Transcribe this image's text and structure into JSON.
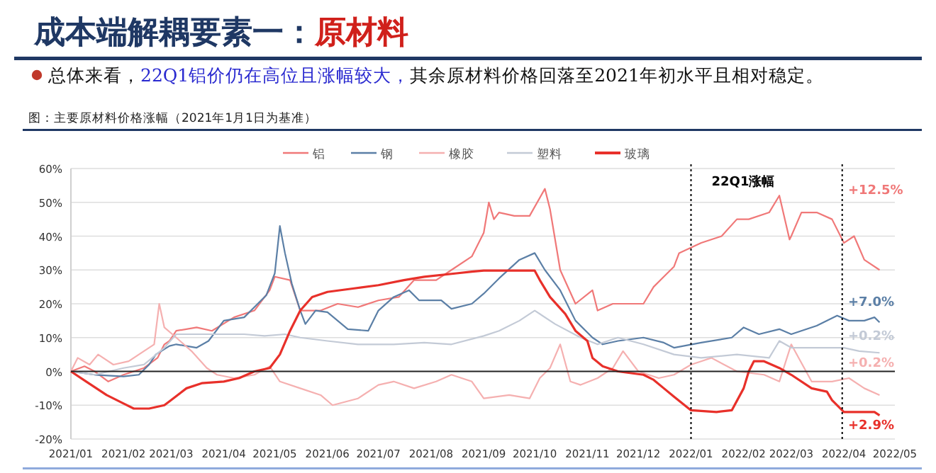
{
  "chart_data": {
    "type": "line",
    "title": "成本端解耦要素一：原材料",
    "subtitle": "总体来看，22Q1铝价仍在高位且涨幅较大，其余原材料价格回落至2021年初水平且相对稳定。",
    "annotations": [
      "图：主要原材料价格涨幅（2021年1月1日为基准）",
      "22Q1涨幅",
      "+12.5%",
      "+7.0%",
      "+0.2%",
      "+0.2%",
      "+2.9%"
    ],
    "legend": "top",
    "grid": "y",
    "xlim": [
      "2021-01-01",
      "2022-05-01"
    ],
    "xticks": [
      {
        "value": "2021-01",
        "label": "2021/01"
      },
      {
        "value": "2021-02",
        "label": "2021/02"
      },
      {
        "value": "2021-03",
        "label": "2021/03"
      },
      {
        "value": "2021-04",
        "label": "2021/04"
      },
      {
        "value": "2021-05",
        "label": "2021/05"
      },
      {
        "value": "2021-06",
        "label": "2021/06"
      },
      {
        "value": "2021-07",
        "label": "2021/07"
      },
      {
        "value": "2021-08",
        "label": "2021/08"
      },
      {
        "value": "2021-09",
        "label": "2021/09"
      },
      {
        "value": "2021-10",
        "label": "2021/10"
      },
      {
        "value": "2021-11",
        "label": "2021/11"
      },
      {
        "value": "2021-12",
        "label": "2021/12"
      },
      {
        "value": "2022-01",
        "label": "2022/01"
      },
      {
        "value": "2022-02",
        "label": "2022/02"
      },
      {
        "value": "2022-03",
        "label": "2022/03"
      },
      {
        "value": "2022-04",
        "label": "2022/04"
      },
      {
        "value": "2022-05",
        "label": "2022/05"
      }
    ],
    "ylim": [
      -20,
      60
    ],
    "yticks": [
      {
        "value": -20,
        "label": "-20%"
      },
      {
        "value": -10,
        "label": "-10%"
      },
      {
        "value": 0,
        "label": "0%"
      },
      {
        "value": 10,
        "label": "10%"
      },
      {
        "value": 20,
        "label": "20%"
      },
      {
        "value": 30,
        "label": "30%"
      },
      {
        "value": 40,
        "label": "40%"
      },
      {
        "value": 50,
        "label": "50%"
      },
      {
        "value": 60,
        "label": "60%"
      }
    ],
    "ref_lines": [
      {
        "axis": "x",
        "value": "2022-01-01",
        "line_style": "dotted",
        "color": "#000000"
      },
      {
        "axis": "x",
        "value": "2022-03-31",
        "line_style": "dotted",
        "color": "#000000"
      }
    ],
    "series": [
      {
        "name": "铝",
        "color": "#f07878",
        "x": [
          "2021-01-01",
          "2021-01-09",
          "2021-01-15",
          "2021-01-23",
          "2021-02-01",
          "2021-02-13",
          "2021-02-21",
          "2021-02-25",
          "2021-02-28",
          "2021-03-04",
          "2021-03-16",
          "2021-03-25",
          "2021-04-07",
          "2021-04-19",
          "2021-04-28",
          "2021-05-01",
          "2021-05-10",
          "2021-05-16",
          "2021-05-28",
          "2021-06-07",
          "2021-06-19",
          "2021-07-01",
          "2021-07-13",
          "2021-07-22",
          "2021-08-04",
          "2021-08-13",
          "2021-08-25",
          "2021-09-01",
          "2021-09-04",
          "2021-09-07",
          "2021-09-10",
          "2021-09-19",
          "2021-09-28",
          "2021-10-07",
          "2021-10-10",
          "2021-10-16",
          "2021-10-25",
          "2021-11-04",
          "2021-11-07",
          "2021-11-16",
          "2021-11-25",
          "2021-12-04",
          "2021-12-10",
          "2021-12-16",
          "2021-12-22",
          "2021-12-25",
          "2022-01-07",
          "2022-01-19",
          "2022-01-28",
          "2022-02-04",
          "2022-02-16",
          "2022-02-22",
          "2022-02-28",
          "2022-03-01",
          "2022-03-07",
          "2022-03-16",
          "2022-03-25",
          "2022-04-01",
          "2022-04-07",
          "2022-04-13",
          "2022-04-22"
        ],
        "values": [
          0,
          1.5,
          0,
          -3,
          -1,
          1,
          4,
          8,
          9,
          12,
          13,
          12,
          16,
          18,
          24,
          28,
          27,
          18,
          18,
          20,
          19,
          21,
          22,
          27,
          27,
          30,
          34,
          41,
          50,
          45,
          47,
          46,
          46,
          54,
          48,
          30,
          20,
          24,
          18,
          20,
          20,
          20,
          25,
          28,
          31,
          35,
          38,
          40,
          45,
          45,
          47,
          52,
          39,
          40,
          47,
          47,
          45,
          38,
          40,
          33,
          30
        ]
      },
      {
        "name": "钢",
        "color": "#5b7fa6",
        "x": [
          "2021-01-01",
          "2021-01-15",
          "2021-02-01",
          "2021-02-10",
          "2021-02-16",
          "2021-02-20",
          "2021-02-28",
          "2021-03-04",
          "2021-03-16",
          "2021-03-23",
          "2021-04-01",
          "2021-04-13",
          "2021-04-19",
          "2021-04-26",
          "2021-05-01",
          "2021-05-04",
          "2021-05-07",
          "2021-05-11",
          "2021-05-16",
          "2021-05-19",
          "2021-05-25",
          "2021-06-01",
          "2021-06-13",
          "2021-06-25",
          "2021-07-01",
          "2021-07-10",
          "2021-07-19",
          "2021-07-25",
          "2021-08-07",
          "2021-08-13",
          "2021-08-25",
          "2021-09-01",
          "2021-09-10",
          "2021-09-22",
          "2021-10-01",
          "2021-10-07",
          "2021-10-16",
          "2021-10-25",
          "2021-11-04",
          "2021-11-10",
          "2021-11-19",
          "2021-12-04",
          "2021-12-16",
          "2021-12-22",
          "2022-01-07",
          "2022-01-25",
          "2022-02-01",
          "2022-02-10",
          "2022-02-22",
          "2022-03-01",
          "2022-03-16",
          "2022-03-28",
          "2022-04-04",
          "2022-04-13",
          "2022-04-19",
          "2022-04-22"
        ],
        "values": [
          0,
          -1,
          -1.5,
          -1,
          2,
          5,
          7.5,
          8,
          7,
          9,
          15,
          16,
          19,
          22.5,
          29,
          43,
          35,
          26,
          18,
          14,
          18,
          17.5,
          12.5,
          12,
          18,
          22,
          24,
          21,
          21,
          18.5,
          20,
          23,
          27.5,
          33,
          35,
          30,
          24,
          15,
          10,
          8,
          9,
          10,
          8.5,
          7,
          8.5,
          10,
          13,
          11,
          12.5,
          11,
          13.5,
          16.5,
          15,
          15,
          16,
          14.5
        ]
      },
      {
        "name": "橡胶",
        "color": "#f5b0b0",
        "x": [
          "2021-01-01",
          "2021-01-05",
          "2021-01-12",
          "2021-01-17",
          "2021-01-26",
          "2021-02-04",
          "2021-02-13",
          "2021-02-19",
          "2021-02-22",
          "2021-02-25",
          "2021-03-04",
          "2021-03-13",
          "2021-03-22",
          "2021-03-28",
          "2021-04-07",
          "2021-04-19",
          "2021-04-28",
          "2021-05-04",
          "2021-05-16",
          "2021-05-28",
          "2021-06-04",
          "2021-06-19",
          "2021-07-01",
          "2021-07-10",
          "2021-07-22",
          "2021-08-04",
          "2021-08-13",
          "2021-08-25",
          "2021-09-01",
          "2021-09-16",
          "2021-09-28",
          "2021-10-04",
          "2021-10-10",
          "2021-10-16",
          "2021-10-22",
          "2021-10-28",
          "2021-11-07",
          "2021-11-16",
          "2021-11-22",
          "2021-12-01",
          "2021-12-13",
          "2021-12-22",
          "2022-01-01",
          "2022-01-07",
          "2022-01-13",
          "2022-01-28",
          "2022-02-13",
          "2022-02-22",
          "2022-03-01",
          "2022-03-13",
          "2022-03-25",
          "2022-04-04",
          "2022-04-13",
          "2022-04-22"
        ],
        "values": [
          0,
          4,
          2,
          5,
          2,
          3,
          6,
          8,
          20,
          13,
          10,
          6,
          1,
          -1,
          -2,
          -1,
          1.5,
          -3,
          -5,
          -7,
          -10,
          -8,
          -4,
          -3,
          -5,
          -3,
          -1,
          -3,
          -8,
          -7,
          -8,
          -2,
          1,
          8,
          -3,
          -4,
          -2,
          1,
          6,
          0,
          -2,
          -1,
          2,
          3,
          4,
          0,
          -1,
          -3,
          8,
          -3,
          -3,
          -2,
          -5,
          -7
        ]
      },
      {
        "name": "塑料",
        "color": "#c3cad6",
        "x": [
          "2021-01-01",
          "2021-01-15",
          "2021-02-01",
          "2021-02-13",
          "2021-02-25",
          "2021-03-04",
          "2021-03-16",
          "2021-03-28",
          "2021-04-13",
          "2021-04-25",
          "2021-05-07",
          "2021-05-16",
          "2021-06-01",
          "2021-06-19",
          "2021-07-10",
          "2021-07-28",
          "2021-08-13",
          "2021-09-01",
          "2021-09-10",
          "2021-09-22",
          "2021-10-01",
          "2021-10-13",
          "2021-10-28",
          "2021-11-07",
          "2021-11-19",
          "2021-12-04",
          "2021-12-22",
          "2022-01-07",
          "2022-01-28",
          "2022-02-16",
          "2022-02-22",
          "2022-03-01",
          "2022-03-16",
          "2022-04-01",
          "2022-04-10",
          "2022-04-22"
        ],
        "values": [
          0,
          -1,
          1,
          2,
          7,
          11,
          11,
          11,
          11,
          10.5,
          11,
          10,
          9,
          8,
          8,
          8.5,
          8,
          10.5,
          12,
          15,
          18,
          14,
          10,
          8,
          10,
          8,
          5,
          4,
          5,
          4,
          9,
          7,
          7,
          7,
          6,
          5.5
        ]
      },
      {
        "name": "玻璃",
        "color": "#e8302a",
        "x": [
          "2021-01-01",
          "2021-01-10",
          "2021-01-22",
          "2021-02-01",
          "2021-02-07",
          "2021-02-16",
          "2021-02-25",
          "2021-03-01",
          "2021-03-10",
          "2021-03-19",
          "2021-04-01",
          "2021-04-10",
          "2021-04-19",
          "2021-04-28",
          "2021-05-04",
          "2021-05-10",
          "2021-05-16",
          "2021-05-23",
          "2021-06-01",
          "2021-06-16",
          "2021-07-01",
          "2021-07-16",
          "2021-07-28",
          "2021-08-16",
          "2021-08-25",
          "2021-09-01",
          "2021-10-01",
          "2021-10-04",
          "2021-10-10",
          "2021-10-19",
          "2021-10-25",
          "2021-11-01",
          "2021-11-04",
          "2021-11-10",
          "2021-11-19",
          "2021-12-04",
          "2021-12-10",
          "2021-12-16",
          "2021-12-22",
          "2022-01-01",
          "2022-01-16",
          "2022-01-25",
          "2022-02-01",
          "2022-02-04",
          "2022-02-07",
          "2022-02-13",
          "2022-02-22",
          "2022-03-01",
          "2022-03-13",
          "2022-03-22",
          "2022-03-25",
          "2022-04-01",
          "2022-04-19",
          "2022-04-22"
        ],
        "values": [
          0,
          -3,
          -7,
          -9.5,
          -11,
          -11,
          -10,
          -8.5,
          -5,
          -3.5,
          -3,
          -2,
          0,
          1,
          5,
          12,
          18,
          22,
          23.5,
          24.5,
          25.5,
          27,
          28,
          29,
          29.5,
          29.8,
          29.8,
          27,
          22,
          17,
          12,
          9,
          4,
          1.5,
          0,
          -1,
          -2.5,
          -5,
          -7.5,
          -11.5,
          -12,
          -11.5,
          -5,
          0,
          3,
          3,
          1,
          -1,
          -5,
          -6,
          -8.5,
          -12,
          -12,
          -13
        ]
      }
    ]
  }
}
